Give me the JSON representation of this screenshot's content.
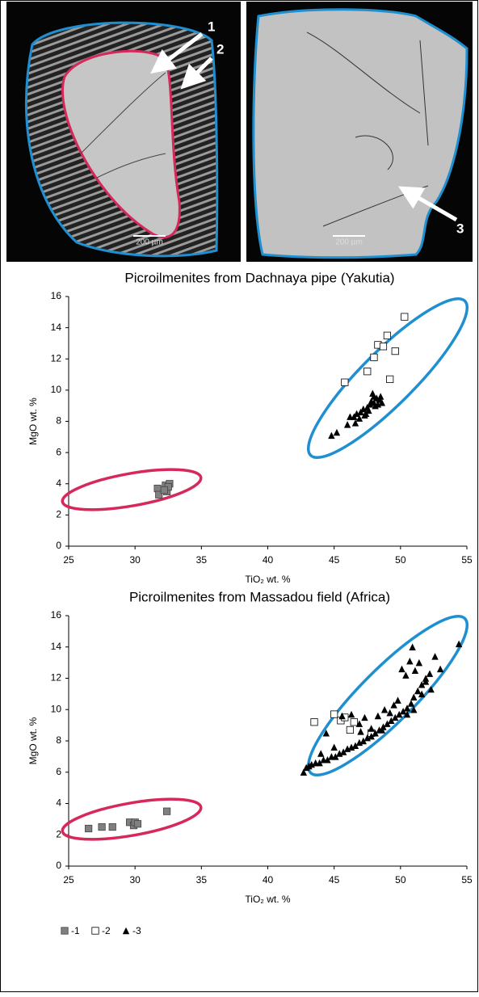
{
  "figure": {
    "labels": [
      "1",
      "2",
      "3"
    ],
    "scale_bars": [
      "200 µm",
      "200 µm"
    ]
  },
  "chart_data": [
    {
      "type": "scatter",
      "title": "Picroilmenites from Dachnaya pipe (Yakutia)",
      "x_label": "TiO₂ wt. %",
      "y_label": "MgO wt. %",
      "xlim": [
        25,
        55
      ],
      "ylim": [
        0,
        16
      ],
      "xticks": [
        25,
        30,
        35,
        40,
        45,
        50,
        55
      ],
      "yticks": [
        0,
        2,
        4,
        6,
        8,
        10,
        12,
        14,
        16
      ],
      "series": [
        {
          "marker": "square",
          "color": "#808080",
          "x": [
            31.7,
            31.8,
            32.3,
            32.4,
            32.6,
            32.5,
            32.2
          ],
          "y": [
            3.7,
            3.3,
            3.9,
            3.5,
            4.0,
            3.8,
            3.6
          ]
        },
        {
          "marker": "square-open",
          "color": "#ffffff",
          "x": [
            45.8,
            47.5,
            48.0,
            48.3,
            48.7,
            49.0,
            49.2,
            49.6,
            50.3
          ],
          "y": [
            10.5,
            11.2,
            12.1,
            12.9,
            12.8,
            13.5,
            10.7,
            12.5,
            14.7
          ]
        },
        {
          "marker": "triangle",
          "color": "#000000",
          "x": [
            44.8,
            45.2,
            46.0,
            46.2,
            46.5,
            46.7,
            46.9,
            47.0,
            47.2,
            47.3,
            47.5,
            47.6,
            47.7,
            47.8,
            47.9,
            48.0,
            48.1,
            48.2,
            48.3,
            48.4,
            48.5,
            48.6,
            48.0,
            47.4,
            46.6
          ],
          "y": [
            7.1,
            7.3,
            7.8,
            8.3,
            8.3,
            8.5,
            8.2,
            8.6,
            8.8,
            8.4,
            8.9,
            8.7,
            9.1,
            9.3,
            9.8,
            9.2,
            9.0,
            9.5,
            9.1,
            9.4,
            9.6,
            9.2,
            9.6,
            8.5,
            7.9
          ]
        }
      ]
    },
    {
      "type": "scatter",
      "title": "Picroilmenites from Massadou field (Africa)",
      "x_label": "TiO₂ wt. %",
      "y_label": "MgO wt. %",
      "xlim": [
        25,
        55
      ],
      "ylim": [
        0,
        16
      ],
      "xticks": [
        25,
        30,
        35,
        40,
        45,
        50,
        55
      ],
      "yticks": [
        0,
        2,
        4,
        6,
        8,
        10,
        12,
        14,
        16
      ],
      "series": [
        {
          "name": "-1",
          "marker": "square",
          "color": "#808080",
          "x": [
            26.5,
            27.5,
            28.3,
            29.6,
            29.9,
            30.0,
            30.2,
            32.4
          ],
          "y": [
            2.4,
            2.5,
            2.5,
            2.8,
            2.6,
            2.8,
            2.7,
            3.5
          ]
        },
        {
          "name": "-2",
          "marker": "square-open",
          "color": "#ffffff",
          "x": [
            43.5,
            45.0,
            45.5,
            45.8,
            46.2,
            46.5,
            47.8
          ],
          "y": [
            9.2,
            9.7,
            9.3,
            9.5,
            8.7,
            9.2,
            8.5
          ]
        },
        {
          "name": "-3",
          "marker": "triangle",
          "color": "#000000",
          "x": [
            42.7,
            42.9,
            43.1,
            43.3,
            43.6,
            43.9,
            44.2,
            44.5,
            44.8,
            45.1,
            45.4,
            45.7,
            46.0,
            46.3,
            46.6,
            46.9,
            47.2,
            47.5,
            47.8,
            48.1,
            48.4,
            48.7,
            49.0,
            49.3,
            49.6,
            49.9,
            50.2,
            50.5,
            50.8,
            51.0,
            51.3,
            51.6,
            51.9,
            52.2,
            54.4,
            44.4,
            45.6,
            46.3,
            46.9,
            47.3,
            47.8,
            48.3,
            48.8,
            49.2,
            49.5,
            49.8,
            50.1,
            50.4,
            50.7,
            50.9,
            51.1,
            51.4,
            51.6,
            51.9,
            52.3,
            52.6,
            53.0,
            50.5,
            51.0,
            48.6,
            47.0,
            44.0,
            45.0
          ],
          "y": [
            6.0,
            6.3,
            6.4,
            6.5,
            6.6,
            6.6,
            6.8,
            6.8,
            7.0,
            7.0,
            7.2,
            7.3,
            7.5,
            7.6,
            7.7,
            7.9,
            8.0,
            8.2,
            8.3,
            8.5,
            8.7,
            8.9,
            9.1,
            9.3,
            9.5,
            9.7,
            9.9,
            10.1,
            10.4,
            10.8,
            11.2,
            11.6,
            12.0,
            12.3,
            14.2,
            8.5,
            9.6,
            9.7,
            9.1,
            9.5,
            8.8,
            9.6,
            10.0,
            9.8,
            10.3,
            10.6,
            12.6,
            12.2,
            13.1,
            14.0,
            12.5,
            13.0,
            11.0,
            11.8,
            11.3,
            13.4,
            12.6,
            9.7,
            10.0,
            8.7,
            8.6,
            7.2,
            7.6
          ]
        }
      ]
    }
  ]
}
